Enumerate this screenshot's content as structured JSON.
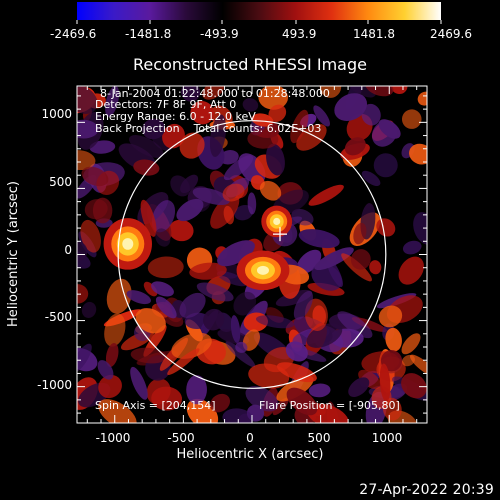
{
  "colorbar": {
    "tick_labels": [
      "-2469.6",
      "-1481.8",
      "-493.9",
      "493.9",
      "1481.8",
      "2469.6"
    ],
    "colormap": [
      "#0000ff",
      "#3a1ac8",
      "#5a1a9e",
      "#2a0a3a",
      "#000000",
      "#4a0c12",
      "#a01010",
      "#e03010",
      "#ff8a10",
      "#ffd030",
      "#ffffff"
    ]
  },
  "plot": {
    "title": "Reconstructed RHESSI Image",
    "info_lines": [
      "8-Jan-2004 01:22:48.000 to 01:28:48.000",
      "Detectors: 7F 8F 9F, Att 0",
      "Energy Range: 6.0 - 12.0 keV",
      "Back Projection    Total counts: 6.02E+03"
    ],
    "spin_axis": "Spin Axis = [204,154]",
    "flare_position": "Flare Position = [-905,80]",
    "xlabel": "Heliocentric X (arcsec)",
    "ylabel": "Heliocentric Y (arcsec)",
    "x_ticks": [
      "-1000",
      "-500",
      "0",
      "500",
      "1000"
    ],
    "y_ticks": [
      "1000",
      "500",
      "0",
      "-500",
      "-1000"
    ],
    "solar_disk_radius_arcsec": 975,
    "marker_arcsec": [
      204,
      154
    ],
    "peak_arcsec": [
      -905,
      80
    ],
    "xlim": [
      -1275,
      1275
    ],
    "ylim": [
      -1275,
      1275
    ]
  },
  "footer": {
    "timestamp": "27-Apr-2022 20:39"
  }
}
